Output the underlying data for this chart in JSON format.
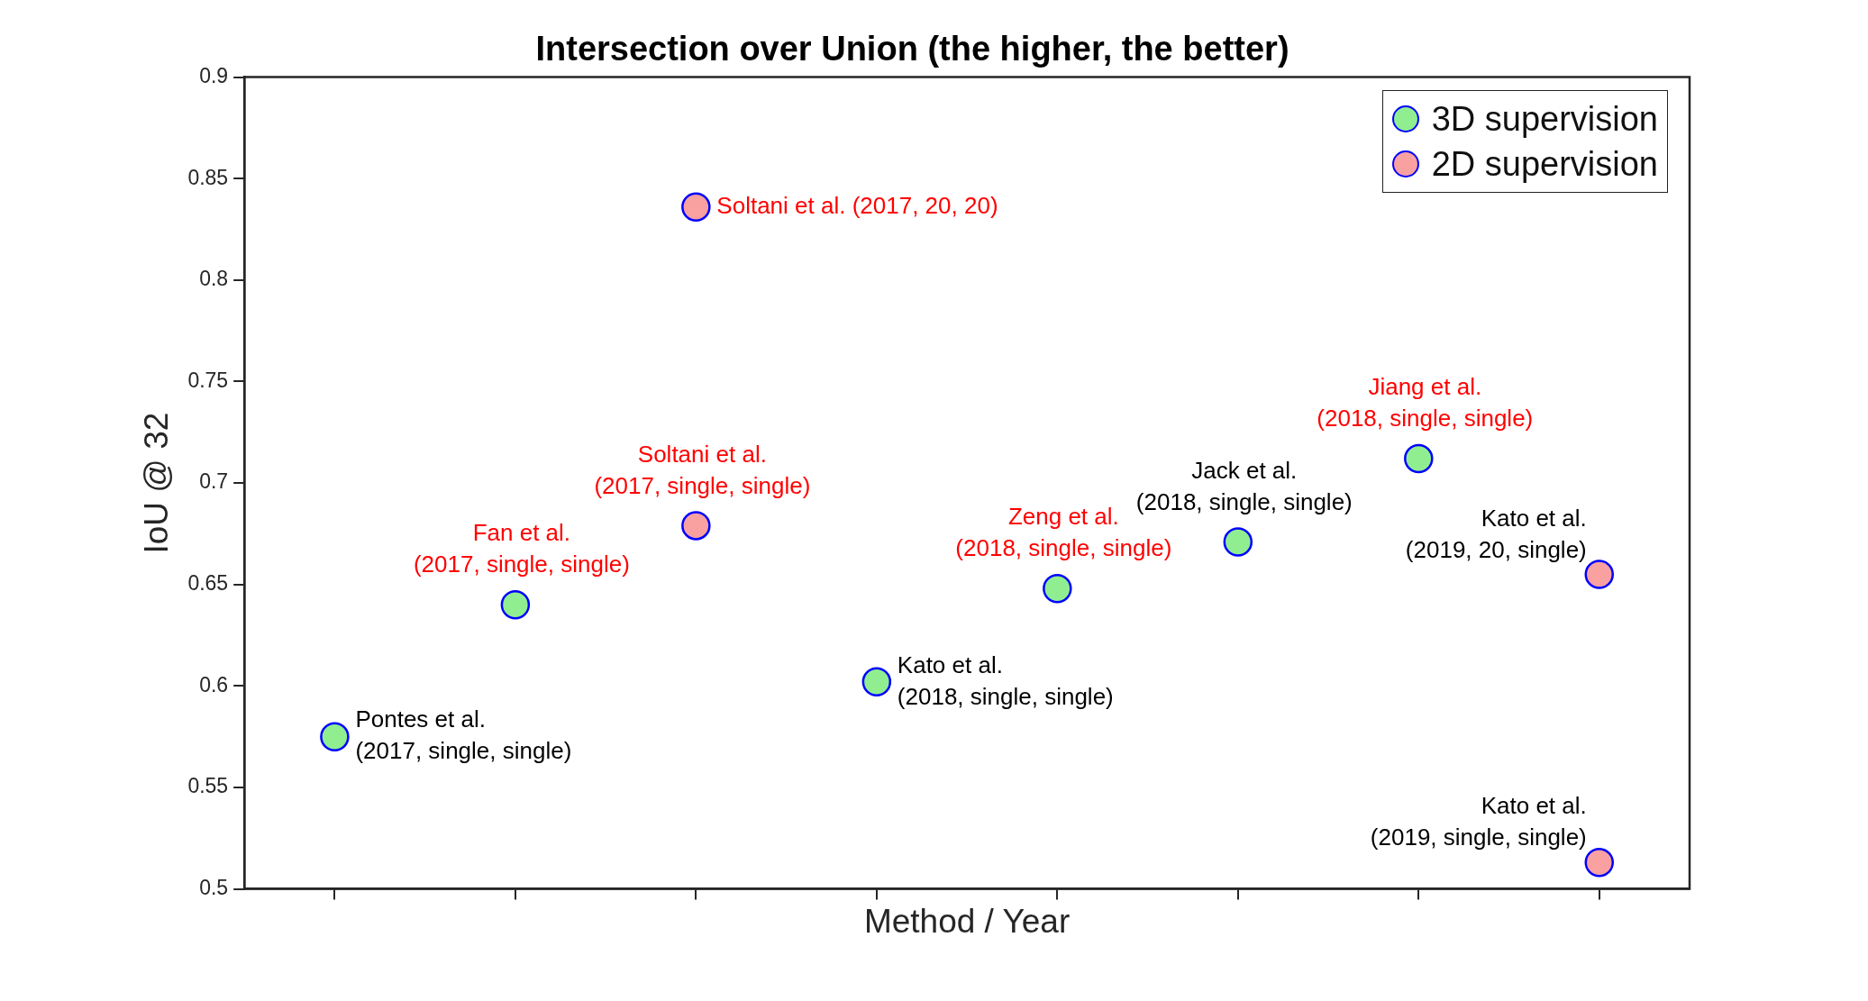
{
  "chart_data": {
    "type": "scatter",
    "title": "Intersection over Union (the higher, the better)",
    "xlabel": "Method / Year",
    "ylabel": "IoU @ 32",
    "categories": [
      null,
      null,
      null,
      null,
      null,
      null,
      null,
      null
    ],
    "ylim": [
      0.5,
      0.9
    ],
    "yticks": [
      0.5,
      0.55,
      0.6,
      0.65,
      0.7,
      0.75,
      0.8,
      0.85,
      0.9
    ],
    "tick_labels": "y",
    "legend": "top right",
    "marker": "circle",
    "series": [
      {
        "name": "3D supervision",
        "color": "#90ee90",
        "values": [
          0.575,
          0.64,
          null,
          0.602,
          0.648,
          0.671,
          0.712,
          null
        ]
      },
      {
        "name": "2D supervision",
        "color": "#f9a0a0",
        "values": [
          null,
          null,
          0.836,
          null,
          null,
          null,
          null,
          0.655
        ]
      },
      {
        "color": "#f9a0a0",
        "values": [
          null,
          null,
          0.679,
          null,
          null,
          null,
          null,
          0.513
        ]
      }
    ],
    "annotations": [
      "Pontes et al.\n(2017, single, single)",
      "Fan et al.\n(2017, single, single)",
      "Soltani et al. (2017, 20, 20)",
      "Soltani et al.\n(2017, single, single)",
      "Kato et al.\n(2018, single, single)",
      "Zeng et al.\n(2018, single, single)",
      "Jack et al.\n(2018, single, single)",
      "Jiang et al.\n(2018, single, single)",
      "Kato et al.\n(2019, 20, single)",
      "Kato et al.\n(2019, single, single)"
    ]
  }
}
